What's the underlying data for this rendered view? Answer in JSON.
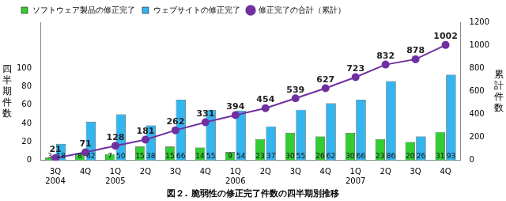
{
  "chart_data": {
    "type": "bar",
    "title": "図２. 脆弱性の修正完了件数の四半期別推移",
    "ylabel": "四半期件数",
    "y2label": "累計件数",
    "categories": [
      "3Q\n2004",
      "4Q",
      "1Q\n2005",
      "2Q",
      "3Q",
      "4Q",
      "1Q\n2006",
      "2Q",
      "3Q",
      "4Q",
      "1Q\n2007",
      "2Q",
      "3Q",
      "4Q"
    ],
    "series": [
      {
        "name": "ソフトウェア製品の修正完了",
        "color": "#33cc33",
        "type": "bar",
        "values": [
          3,
          8,
          7,
          15,
          15,
          14,
          9,
          23,
          30,
          26,
          30,
          23,
          20,
          31
        ]
      },
      {
        "name": "ウェブサイトの修正完了",
        "color": "#33b5f0",
        "type": "bar",
        "values": [
          18,
          42,
          50,
          38,
          66,
          55,
          54,
          37,
          55,
          62,
          66,
          86,
          26,
          93
        ]
      },
      {
        "name": "修正完了の合計（累計）",
        "color": "#7030a0",
        "type": "line",
        "axis": "y2",
        "marker": "circle",
        "values": [
          21,
          71,
          128,
          181,
          262,
          331,
          394,
          454,
          539,
          627,
          723,
          832,
          878,
          1002
        ]
      }
    ],
    "ylim": [
      0,
      150
    ],
    "yticks": [
      0,
      20,
      40,
      60,
      80,
      100
    ],
    "y2lim": [
      0,
      1200
    ],
    "y2ticks": [
      0,
      200,
      400,
      600,
      800,
      1000,
      1200
    ],
    "grid": false,
    "legend": "top-left",
    "data_labels": true
  }
}
